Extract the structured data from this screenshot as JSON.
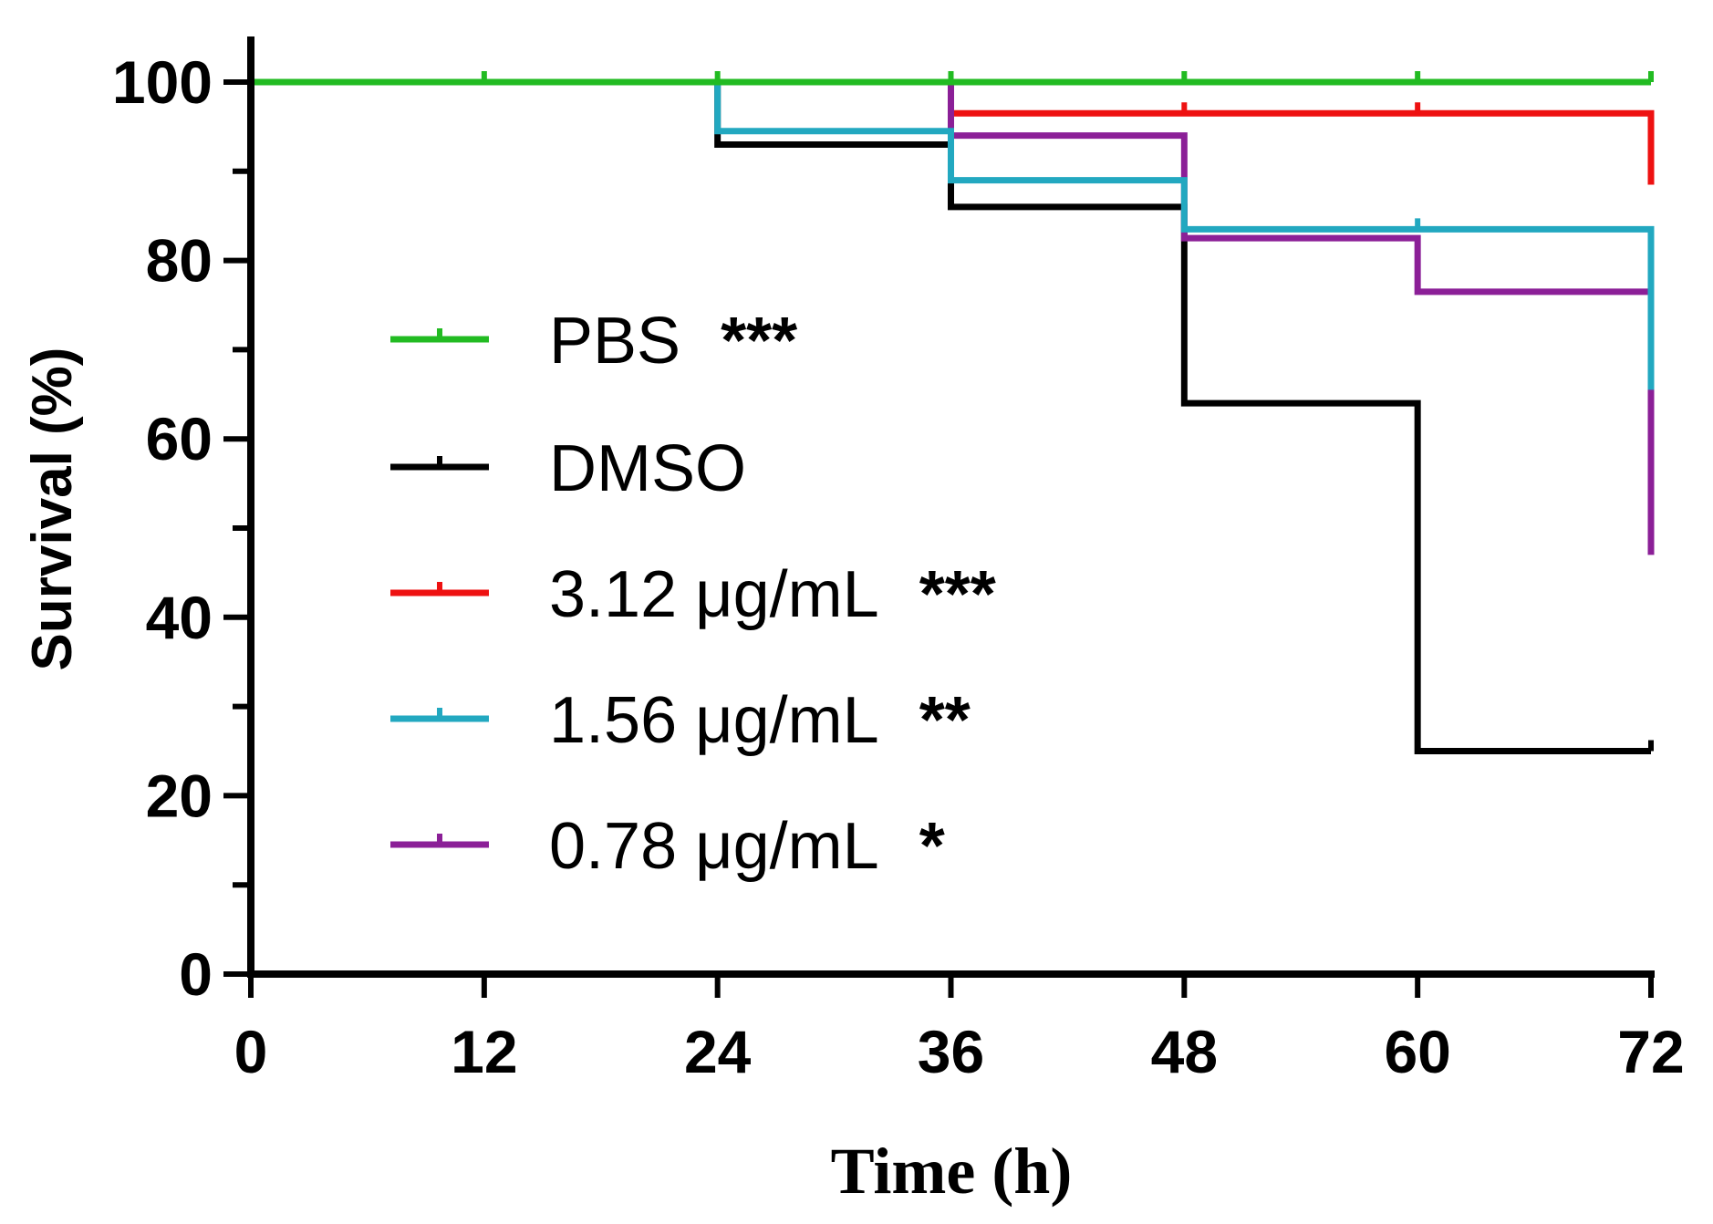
{
  "chart_data": {
    "type": "line",
    "step": true,
    "title": "",
    "xlabel": "Time (h)",
    "ylabel": "Survival (%)",
    "xlim": [
      0,
      72
    ],
    "ylim": [
      0,
      100
    ],
    "xticks": [
      "0",
      "12",
      "24",
      "36",
      "48",
      "60",
      "72"
    ],
    "yticks": [
      "0",
      "20",
      "40",
      "60",
      "80",
      "100"
    ],
    "grid": false,
    "legend_position": "center-left",
    "series": [
      {
        "name": "PBS",
        "significance": "***",
        "color": "#22bb22",
        "x": [
          0,
          72
        ],
        "y": [
          100,
          100
        ],
        "censor_x": [
          12,
          24,
          36,
          48,
          60,
          72
        ]
      },
      {
        "name": "DMSO",
        "significance": "",
        "color": "#000000",
        "x": [
          0,
          24,
          36,
          48,
          60,
          72
        ],
        "y": [
          100,
          93,
          86,
          64,
          25,
          25
        ],
        "censor_x": [
          72
        ]
      },
      {
        "name": "3.12 μg/mL",
        "significance": "***",
        "color": "#ee1111",
        "x": [
          0,
          36,
          72,
          72
        ],
        "y": [
          100,
          96.5,
          88.5,
          88.5
        ],
        "censor_x": [
          48,
          60
        ]
      },
      {
        "name": "1.56 μg/mL",
        "significance": "**",
        "color": "#22a8c0",
        "x": [
          0,
          24,
          36,
          48,
          72,
          72
        ],
        "y": [
          100,
          94.5,
          89,
          83.5,
          65.5,
          65.5
        ],
        "censor_x": [
          60
        ]
      },
      {
        "name": "0.78 μg/mL",
        "significance": "*",
        "color": "#8b1f97",
        "x": [
          0,
          36,
          48,
          60,
          72,
          72
        ],
        "y": [
          100,
          94,
          82.5,
          76.5,
          47,
          47
        ],
        "censor_x": []
      }
    ]
  }
}
